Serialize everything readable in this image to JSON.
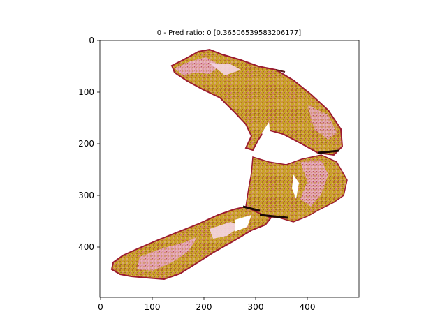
{
  "figure": {
    "title": "0 - Pred ratio: 0 [0.36506539583206177]",
    "x_ticks": [
      "0",
      "100",
      "200",
      "300",
      "400"
    ],
    "y_ticks": [
      "0",
      "100",
      "200",
      "300",
      "400"
    ],
    "colors": {
      "tissue_dark_red": "#9b1b30",
      "tissue_pink": "#d77aa0",
      "tissue_gold": "#b8860b",
      "tissue_brown": "#8b5a1a",
      "fold_black": "#1a0a05"
    }
  }
}
